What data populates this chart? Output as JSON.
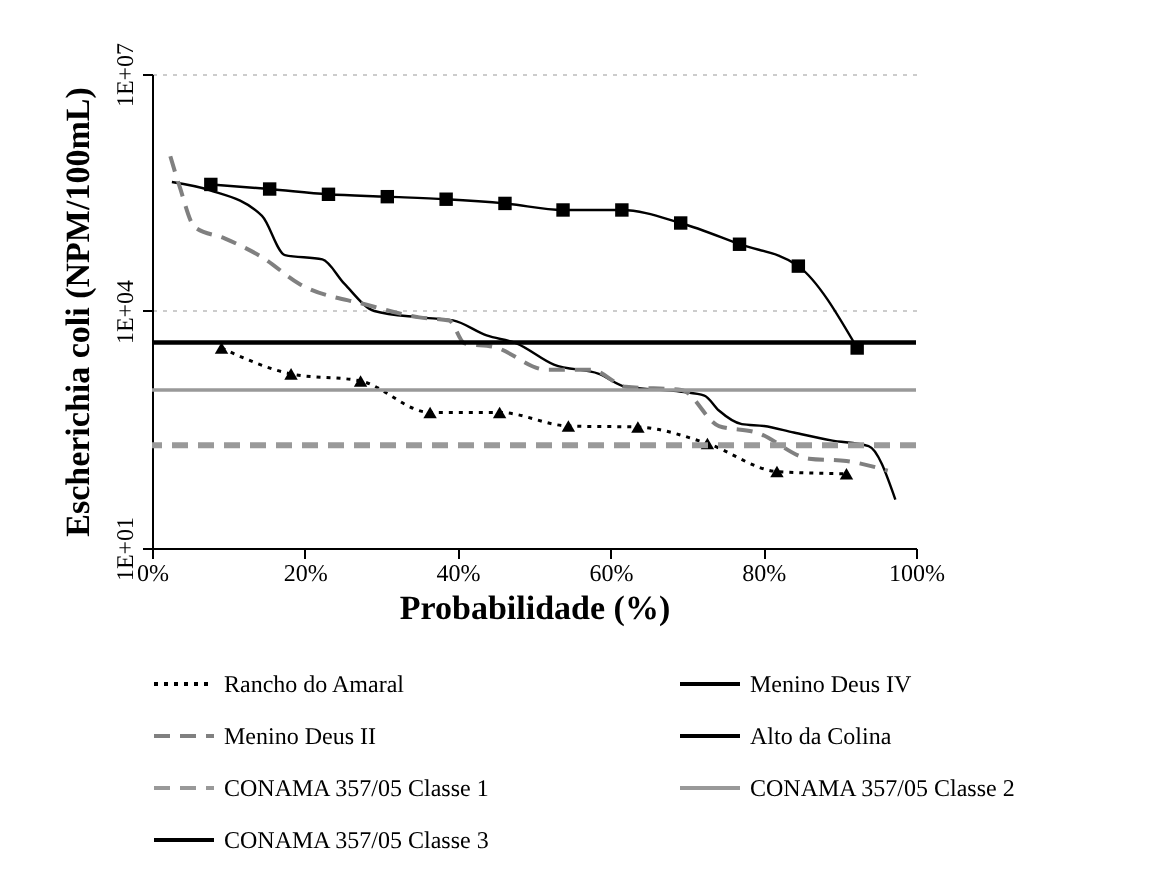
{
  "chart_data": {
    "type": "line",
    "xlabel": "Probabilidade (%)",
    "ylabel": "Escherichia coli (NPM/100mL)",
    "xlim": [
      0,
      100
    ],
    "xticks": [
      {
        "value": 0,
        "label": "0%"
      },
      {
        "value": 20,
        "label": "20%"
      },
      {
        "value": 40,
        "label": "40%"
      },
      {
        "value": 60,
        "label": "60%"
      },
      {
        "value": 80,
        "label": "80%"
      },
      {
        "value": 100,
        "label": "100%"
      }
    ],
    "ylim": [
      10,
      10000000
    ],
    "yticks": [
      {
        "value": 10,
        "label": "1E+01"
      },
      {
        "value": 10000,
        "label": "1E+04"
      },
      {
        "value": 10000000,
        "label": "1E+07"
      }
    ],
    "log": "y",
    "grid": "y",
    "legend": "bottom",
    "series": [
      {
        "name": "Rancho do Amaral",
        "color": "#000000",
        "line_style": "dotted",
        "marker": "triangle",
        "x": [
          9.1,
          18.2,
          27.3,
          36.4,
          45.5,
          54.5,
          63.6,
          72.7,
          81.8,
          90.9
        ],
        "values": [
          3400,
          1600,
          1300,
          520,
          520,
          350,
          340,
          210,
          93,
          87
        ]
      },
      {
        "name": "Menino Deus IV",
        "color": "#000000",
        "line_style": "solid",
        "marker": "none",
        "x": [
          2.6,
          7.5,
          14.4,
          17.4,
          22.3,
          25.2,
          29.1,
          35.0,
          39.4,
          43.8,
          47.7,
          52.6,
          58.5,
          62.0,
          69.3,
          72.3,
          74.2,
          77.2,
          80.1,
          84.0,
          88.9,
          93.8,
          97.3
        ],
        "values": [
          430000,
          340000,
          160000,
          51000,
          45000,
          22000,
          10000,
          8300,
          7600,
          4900,
          3900,
          2100,
          1600,
          1100,
          950,
          850,
          550,
          370,
          350,
          290,
          230,
          195,
          41
        ]
      },
      {
        "name": "Menino Deus II",
        "color": "#808080",
        "line_style": "dashed",
        "marker": "none",
        "x": [
          2.4,
          3.6,
          5.6,
          9.5,
          14.4,
          19.3,
          28.1,
          35.0,
          38.9,
          40.9,
          44.8,
          51.7,
          57.5,
          62.0,
          69.3,
          74.2,
          79.1,
          86.0,
          90.9,
          96.3
        ],
        "values": [
          910000,
          380000,
          115000,
          83000,
          48000,
          22000,
          12000,
          8300,
          7600,
          3900,
          3500,
          1800,
          1800,
          1100,
          1000,
          350,
          290,
          135,
          126,
          95
        ]
      },
      {
        "name": "Alto da Colina",
        "color": "#000000",
        "line_style": "solid",
        "marker": "square",
        "x": [
          7.7,
          15.4,
          23.1,
          30.8,
          38.5,
          46.2,
          53.8,
          61.5,
          69.2,
          76.9,
          84.6,
          92.3
        ],
        "values": [
          400000,
          350000,
          300000,
          280000,
          260000,
          230000,
          190000,
          190000,
          130000,
          70000,
          37000,
          3400
        ]
      }
    ],
    "ref_lines": [
      {
        "axis": "y",
        "value": 200,
        "label": "CONAMA 357/05 Classe 1",
        "color": "#999999",
        "line_style": "dashed"
      },
      {
        "axis": "y",
        "value": 1000,
        "label": "CONAMA 357/05 Classe 2",
        "color": "#999999",
        "line_style": "solid"
      },
      {
        "axis": "y",
        "value": 4000,
        "label": "CONAMA 357/05 Classe 3",
        "color": "#000000",
        "line_style": "solid"
      }
    ]
  }
}
